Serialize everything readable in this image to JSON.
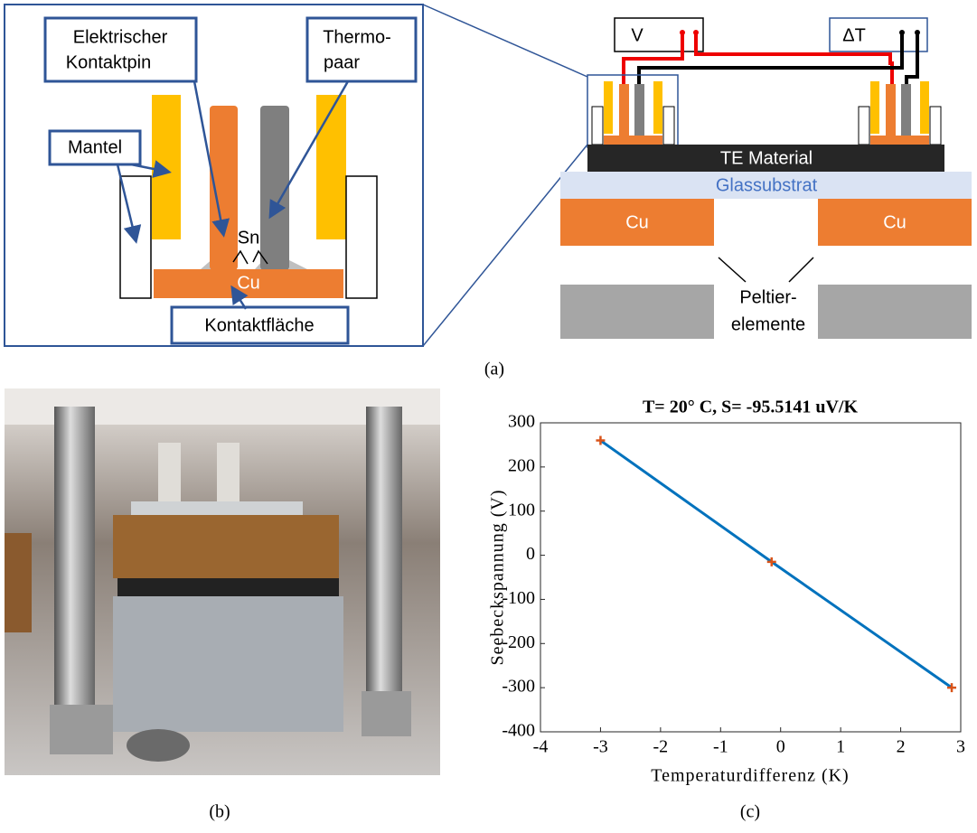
{
  "diagram": {
    "caption": "(a)",
    "zoom_labels": {
      "pin": [
        "Elektrischer",
        "Kontaktpin"
      ],
      "thermo": [
        "Thermo-",
        "paar"
      ],
      "mantel": "Mantel",
      "sn": "Sn",
      "cu": "Cu",
      "contact": "Kontaktfläche"
    },
    "setup_labels": {
      "v": "V",
      "dt": "ΔT",
      "te": "TE Material",
      "glass": "Glassubstrat",
      "cu_left": "Cu",
      "cu_right": "Cu",
      "peltier": [
        "Peltier-",
        "elemente"
      ]
    }
  },
  "photo": {
    "caption": "(b)"
  },
  "chart_data": {
    "type": "scatter",
    "caption": "(c)",
    "title": "T= 20° C, S= -95.5141 uV/K",
    "xlabel": "Temperaturdifferenz (K)",
    "ylabel": "Seebeckspannung (V)",
    "x": [
      -3,
      -0.15,
      2.85
    ],
    "values": [
      260,
      -15,
      -300
    ],
    "color": "#d95319",
    "line_color": "#0072bd",
    "xlim": [
      -4,
      3
    ],
    "xticks": [
      -4,
      -3,
      -2,
      -1,
      0,
      1,
      2,
      3
    ],
    "ylim": [
      -400,
      300
    ],
    "yticks": [
      -400,
      -300,
      -200,
      -100,
      0,
      100,
      200,
      300
    ]
  }
}
